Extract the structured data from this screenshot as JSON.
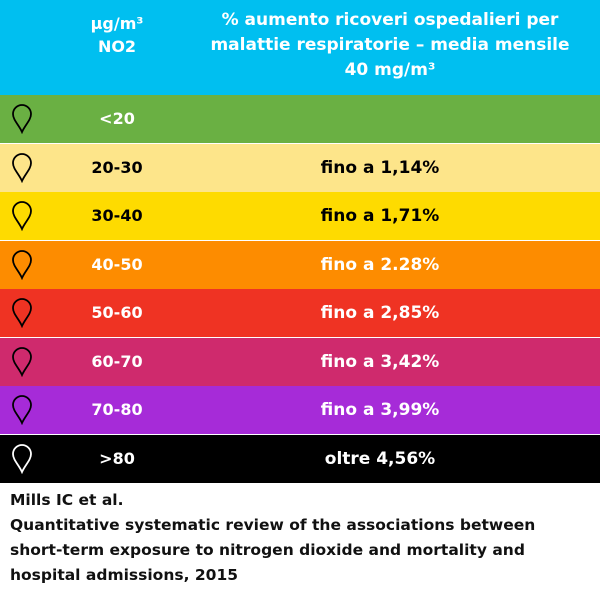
{
  "header": {
    "unit_line1": "µg/m³",
    "unit_line2": "NO2",
    "desc_line1": "% aumento ricoveri ospedalieri per",
    "desc_line2": "malattie respiratorie – media mensile",
    "desc_line3": "40 mg/m³",
    "bg_color": "#00bff0"
  },
  "rows": [
    {
      "range": "<20",
      "value": "",
      "bg": "#6ab043",
      "text_color": "#ffffff",
      "pin_color": "#000000",
      "icon": "map-pin-icon"
    },
    {
      "range": "20-30",
      "value": "fino a 1,14%",
      "bg": "#fde58a",
      "text_color": "#000000",
      "pin_color": "#000000",
      "icon": "map-pin-icon"
    },
    {
      "range": "30-40",
      "value": "fino a 1,71%",
      "bg": "#fedb00",
      "text_color": "#000000",
      "pin_color": "#000000",
      "icon": "map-pin-icon"
    },
    {
      "range": "40-50",
      "value": "fino a 2.28%",
      "bg": "#fd8c00",
      "text_color": "#ffffff",
      "pin_color": "#000000",
      "icon": "map-pin-icon"
    },
    {
      "range": "50-60",
      "value": "fino a 2,85%",
      "bg": "#ef3323",
      "text_color": "#ffffff",
      "pin_color": "#000000",
      "icon": "map-pin-icon"
    },
    {
      "range": "60-70",
      "value": "fino a 3,42%",
      "bg": "#cf2a6d",
      "text_color": "#ffffff",
      "pin_color": "#000000",
      "icon": "map-pin-icon"
    },
    {
      "range": "70-80",
      "value": "fino a 3,99%",
      "bg": "#a62bd8",
      "text_color": "#ffffff",
      "pin_color": "#000000",
      "icon": "map-pin-icon"
    },
    {
      "range": ">80",
      "value": "oltre 4,56%",
      "bg": "#000000",
      "text_color": "#ffffff",
      "pin_color": "#ffffff",
      "icon": "map-pin-icon"
    }
  ],
  "source": {
    "line1": "Mills IC et al.",
    "line2": "Quantitative systematic review of the associations between",
    "line3": "short-term exposure to nitrogen dioxide and mortality and",
    "line4": "hospital admissions, 2015"
  }
}
